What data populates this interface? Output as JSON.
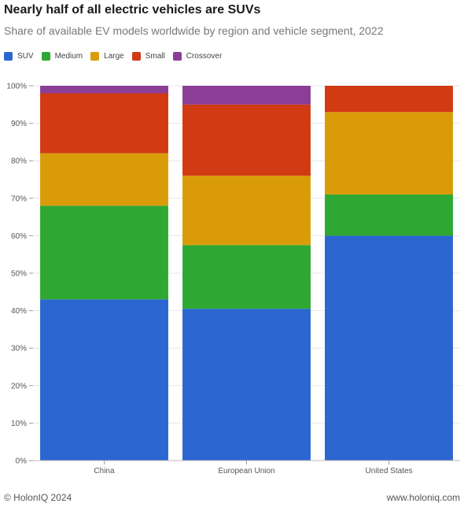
{
  "header": {
    "title": "Nearly half of all electric vehicles are SUVs",
    "subtitle": "Share of available EV models worldwide by region and vehicle segment, 2022"
  },
  "footer": {
    "copyright": "© HolonIQ 2024",
    "website": "www.holoniq.com"
  },
  "chart_data": {
    "type": "bar",
    "stacked": true,
    "categories": [
      "China",
      "European Union",
      "United States"
    ],
    "series": [
      {
        "name": "SUV",
        "color": "#2b66d1",
        "values": [
          43,
          40.5,
          60
        ]
      },
      {
        "name": "Medium",
        "color": "#2ea832",
        "values": [
          25,
          17,
          11
        ]
      },
      {
        "name": "Large",
        "color": "#d99c08",
        "values": [
          14,
          18.5,
          22
        ]
      },
      {
        "name": "Small",
        "color": "#d13a13",
        "values": [
          16,
          19,
          7
        ]
      },
      {
        "name": "Crossover",
        "color": "#8c3d96",
        "values": [
          2,
          5,
          0
        ]
      }
    ],
    "ylim": [
      0,
      100
    ],
    "yticks": [
      "0%",
      "10%",
      "20%",
      "30%",
      "40%",
      "50%",
      "60%",
      "70%",
      "80%",
      "90%",
      "100%"
    ],
    "grid": true,
    "legend_position": "top-left"
  }
}
